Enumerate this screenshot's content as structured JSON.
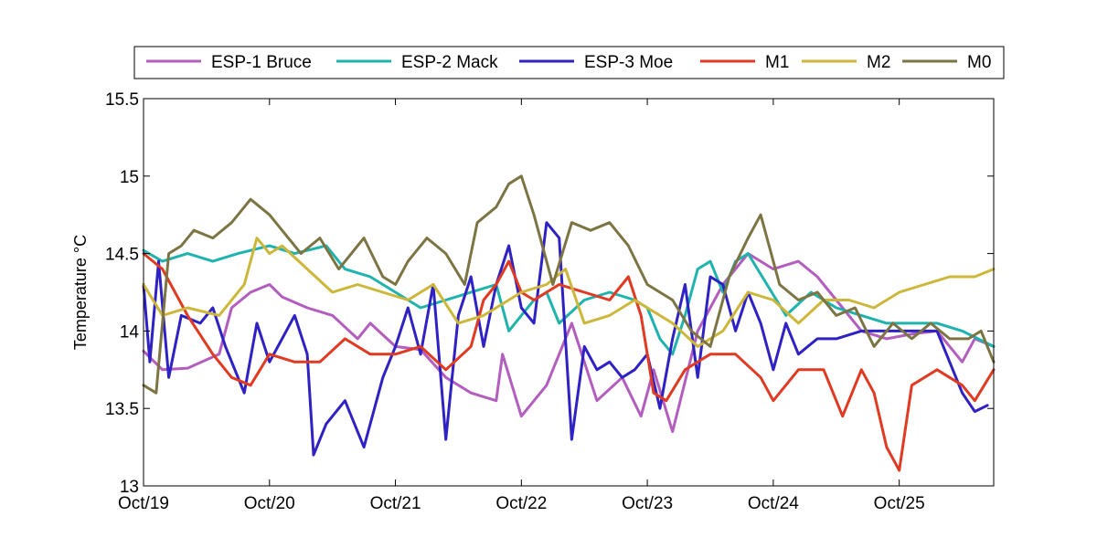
{
  "chart_data": {
    "type": "line",
    "title": "",
    "xlabel": "",
    "ylabel": "Temperature °C",
    "xlim": [
      0,
      6.75
    ],
    "ylim": [
      13,
      15.5
    ],
    "x_ticks": [
      0,
      1,
      2,
      3,
      4,
      5,
      6
    ],
    "x_tick_labels": [
      "Oct/19",
      "Oct/20",
      "Oct/21",
      "Oct/22",
      "Oct/23",
      "Oct/24",
      "Oct/25"
    ],
    "y_ticks": [
      13,
      13.5,
      14,
      14.5,
      15,
      15.5
    ],
    "y_tick_labels": [
      "13",
      "13.5",
      "14",
      "14.5",
      "15",
      "15.5"
    ],
    "grid": false,
    "legend": {
      "position": "top",
      "orientation": "horizontal"
    },
    "series": [
      {
        "name": "ESP-1 Bruce",
        "color": "#b35ebf",
        "x": [
          0,
          0.15,
          0.35,
          0.6,
          0.7,
          0.85,
          1.0,
          1.1,
          1.3,
          1.5,
          1.7,
          1.8,
          2.0,
          2.2,
          2.4,
          2.6,
          2.8,
          2.85,
          3.0,
          3.2,
          3.4,
          3.6,
          3.8,
          3.95,
          4.05,
          4.2,
          4.4,
          4.6,
          4.8,
          5.0,
          5.2,
          5.35,
          5.5,
          5.7,
          5.9,
          6.1,
          6.3,
          6.5,
          6.6,
          6.75
        ],
        "y": [
          13.87,
          13.75,
          13.76,
          13.85,
          14.15,
          14.25,
          14.3,
          14.22,
          14.15,
          14.1,
          13.95,
          14.05,
          13.9,
          13.88,
          13.7,
          13.6,
          13.55,
          13.85,
          13.45,
          13.65,
          14.05,
          13.55,
          13.7,
          13.45,
          13.75,
          13.35,
          14.0,
          14.3,
          14.5,
          14.4,
          14.45,
          14.35,
          14.2,
          14.0,
          13.95,
          13.98,
          14.0,
          13.8,
          13.95,
          13.9
        ]
      },
      {
        "name": "ESP-2 Mack",
        "color": "#1fb3ae",
        "x": [
          0,
          0.15,
          0.35,
          0.55,
          0.75,
          1.0,
          1.2,
          1.45,
          1.6,
          1.8,
          2.0,
          2.2,
          2.4,
          2.6,
          2.8,
          2.9,
          3.0,
          3.1,
          3.2,
          3.3,
          3.5,
          3.7,
          3.9,
          4.0,
          4.1,
          4.2,
          4.3,
          4.4,
          4.5,
          4.6,
          4.7,
          4.8,
          4.95,
          5.1,
          5.3,
          5.5,
          5.7,
          5.9,
          6.1,
          6.3,
          6.5,
          6.75
        ],
        "y": [
          14.52,
          14.45,
          14.5,
          14.45,
          14.5,
          14.55,
          14.5,
          14.55,
          14.4,
          14.35,
          14.25,
          14.15,
          14.2,
          14.25,
          14.3,
          14.0,
          14.1,
          14.2,
          14.25,
          14.05,
          14.2,
          14.25,
          14.2,
          14.15,
          13.95,
          13.85,
          14.1,
          14.4,
          14.45,
          14.25,
          14.45,
          14.5,
          14.3,
          14.1,
          14.25,
          14.15,
          14.1,
          14.05,
          14.05,
          14.05,
          14.0,
          13.9
        ]
      },
      {
        "name": "ESP-3 Moe",
        "color": "#2f22c4",
        "x": [
          0,
          0.05,
          0.12,
          0.2,
          0.3,
          0.45,
          0.55,
          0.65,
          0.8,
          0.9,
          1.0,
          1.1,
          1.2,
          1.3,
          1.35,
          1.45,
          1.6,
          1.75,
          1.9,
          2.0,
          2.1,
          2.2,
          2.3,
          2.4,
          2.5,
          2.6,
          2.7,
          2.8,
          2.9,
          3.0,
          3.1,
          3.2,
          3.3,
          3.4,
          3.5,
          3.6,
          3.7,
          3.8,
          3.9,
          4.0,
          4.1,
          4.2,
          4.3,
          4.4,
          4.5,
          4.6,
          4.7,
          4.8,
          4.9,
          5.0,
          5.1,
          5.2,
          5.35,
          5.5,
          5.7,
          5.9,
          6.1,
          6.3,
          6.5,
          6.6,
          6.7
        ],
        "y": [
          14.3,
          13.8,
          14.45,
          13.7,
          14.1,
          14.05,
          14.15,
          13.9,
          13.6,
          14.05,
          13.8,
          13.95,
          14.1,
          13.85,
          13.2,
          13.4,
          13.55,
          13.25,
          13.7,
          13.9,
          14.15,
          13.85,
          14.3,
          13.3,
          14.1,
          14.35,
          13.9,
          14.3,
          14.55,
          14.15,
          14.05,
          14.7,
          14.6,
          13.3,
          13.9,
          13.75,
          13.8,
          13.7,
          13.75,
          13.85,
          13.5,
          13.95,
          14.3,
          13.7,
          14.35,
          14.3,
          14.0,
          14.25,
          14.05,
          13.75,
          14.05,
          13.85,
          13.95,
          13.95,
          14.0,
          14.0,
          14.0,
          14.0,
          13.6,
          13.48,
          13.52
        ]
      },
      {
        "name": "M1",
        "color": "#e03a22",
        "x": [
          0,
          0.15,
          0.35,
          0.55,
          0.7,
          0.85,
          1.0,
          1.2,
          1.4,
          1.6,
          1.8,
          2.0,
          2.2,
          2.4,
          2.6,
          2.7,
          2.8,
          2.9,
          3.0,
          3.1,
          3.3,
          3.5,
          3.7,
          3.85,
          3.95,
          4.05,
          4.15,
          4.3,
          4.5,
          4.7,
          4.9,
          5.0,
          5.2,
          5.4,
          5.55,
          5.7,
          5.8,
          5.9,
          6.0,
          6.1,
          6.3,
          6.5,
          6.6,
          6.75
        ],
        "y": [
          14.5,
          14.4,
          14.1,
          13.85,
          13.7,
          13.65,
          13.85,
          13.8,
          13.8,
          13.95,
          13.85,
          13.85,
          13.9,
          13.75,
          13.9,
          14.2,
          14.3,
          14.45,
          14.25,
          14.2,
          14.3,
          14.25,
          14.2,
          14.35,
          14.1,
          13.6,
          13.55,
          13.75,
          13.85,
          13.85,
          13.7,
          13.55,
          13.75,
          13.75,
          13.45,
          13.75,
          13.6,
          13.25,
          13.1,
          13.65,
          13.75,
          13.65,
          13.55,
          13.75
        ]
      },
      {
        "name": "M2",
        "color": "#cdb73a",
        "x": [
          0,
          0.15,
          0.35,
          0.6,
          0.8,
          0.9,
          1.0,
          1.1,
          1.3,
          1.5,
          1.7,
          1.9,
          2.1,
          2.3,
          2.5,
          2.7,
          2.8,
          2.9,
          3.0,
          3.2,
          3.35,
          3.5,
          3.7,
          3.9,
          4.0,
          4.2,
          4.4,
          4.6,
          4.8,
          5.0,
          5.2,
          5.4,
          5.6,
          5.8,
          6.0,
          6.2,
          6.4,
          6.6,
          6.75
        ],
        "y": [
          14.3,
          14.1,
          14.15,
          14.1,
          14.3,
          14.6,
          14.5,
          14.55,
          14.4,
          14.25,
          14.3,
          14.25,
          14.2,
          14.3,
          14.05,
          14.1,
          14.15,
          14.2,
          14.25,
          14.3,
          14.4,
          14.05,
          14.1,
          14.2,
          14.15,
          14.05,
          13.9,
          14.0,
          14.25,
          14.2,
          14.05,
          14.2,
          14.2,
          14.15,
          14.25,
          14.3,
          14.35,
          14.35,
          14.4
        ]
      },
      {
        "name": "M0",
        "color": "#7c7443",
        "x": [
          0,
          0.1,
          0.2,
          0.3,
          0.4,
          0.55,
          0.7,
          0.85,
          1.0,
          1.1,
          1.25,
          1.4,
          1.55,
          1.75,
          1.9,
          2.0,
          2.1,
          2.25,
          2.4,
          2.55,
          2.65,
          2.8,
          2.9,
          3.0,
          3.1,
          3.25,
          3.4,
          3.55,
          3.7,
          3.85,
          4.0,
          4.2,
          4.35,
          4.5,
          4.65,
          4.8,
          4.9,
          5.05,
          5.2,
          5.35,
          5.5,
          5.65,
          5.8,
          5.95,
          6.1,
          6.25,
          6.4,
          6.55,
          6.65,
          6.75
        ],
        "y": [
          13.65,
          13.6,
          14.5,
          14.55,
          14.65,
          14.6,
          14.7,
          14.85,
          14.75,
          14.65,
          14.5,
          14.6,
          14.4,
          14.6,
          14.35,
          14.3,
          14.45,
          14.6,
          14.5,
          14.3,
          14.7,
          14.8,
          14.95,
          15.0,
          14.75,
          14.3,
          14.7,
          14.65,
          14.7,
          14.55,
          14.3,
          14.2,
          14.0,
          13.9,
          14.35,
          14.6,
          14.75,
          14.3,
          14.2,
          14.25,
          14.1,
          14.15,
          13.9,
          14.05,
          13.95,
          14.05,
          13.95,
          13.95,
          14.0,
          13.8
        ]
      }
    ]
  }
}
